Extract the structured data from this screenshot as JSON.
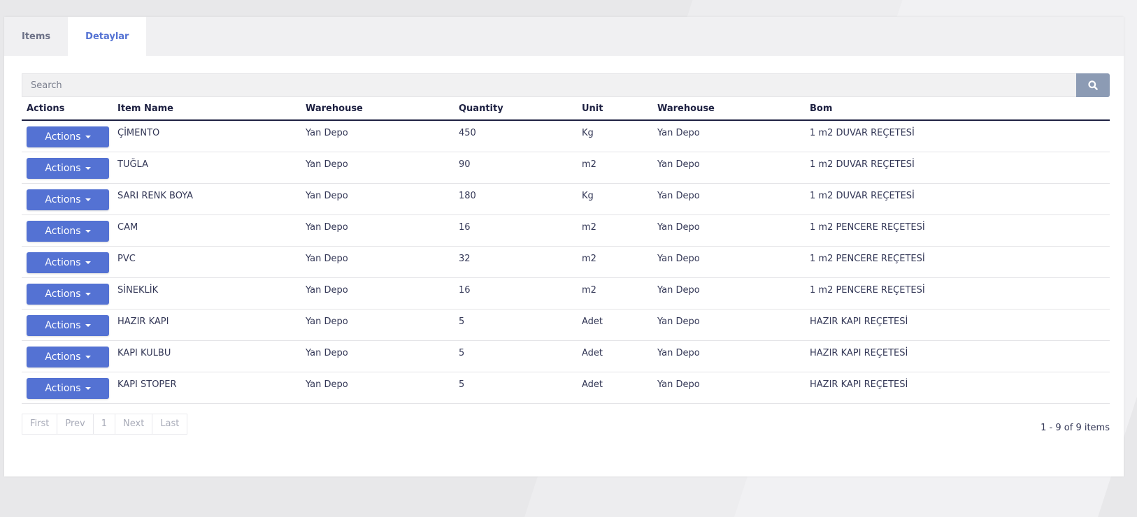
{
  "tabs": [
    {
      "label": "Items",
      "active": false
    },
    {
      "label": "Detaylar",
      "active": true
    }
  ],
  "search": {
    "placeholder": "Search",
    "icon": "search-icon"
  },
  "table": {
    "columns": [
      "Actions",
      "Item Name",
      "Warehouse",
      "Quantity",
      "Unit",
      "Warehouse",
      "Bom"
    ],
    "action_label": "Actions",
    "rows": [
      {
        "item_name": "ÇİMENTO",
        "warehouse": "Yan Depo",
        "quantity": "450",
        "unit": "Kg",
        "warehouse2": "Yan Depo",
        "bom": "1 m2 DUVAR REÇETESİ"
      },
      {
        "item_name": "TUĞLA",
        "warehouse": "Yan Depo",
        "quantity": "90",
        "unit": "m2",
        "warehouse2": "Yan Depo",
        "bom": "1 m2 DUVAR REÇETESİ"
      },
      {
        "item_name": "SARI RENK BOYA",
        "warehouse": "Yan Depo",
        "quantity": "180",
        "unit": "Kg",
        "warehouse2": "Yan Depo",
        "bom": "1 m2 DUVAR REÇETESİ"
      },
      {
        "item_name": "CAM",
        "warehouse": "Yan Depo",
        "quantity": "16",
        "unit": "m2",
        "warehouse2": "Yan Depo",
        "bom": "1 m2 PENCERE REÇETESİ"
      },
      {
        "item_name": "PVC",
        "warehouse": "Yan Depo",
        "quantity": "32",
        "unit": "m2",
        "warehouse2": "Yan Depo",
        "bom": "1 m2 PENCERE REÇETESİ"
      },
      {
        "item_name": "SİNEKLİK",
        "warehouse": "Yan Depo",
        "quantity": "16",
        "unit": "m2",
        "warehouse2": "Yan Depo",
        "bom": "1 m2 PENCERE REÇETESİ"
      },
      {
        "item_name": "HAZIR KAPI",
        "warehouse": "Yan Depo",
        "quantity": "5",
        "unit": "Adet",
        "warehouse2": "Yan Depo",
        "bom": "HAZIR KAPI REÇETESİ"
      },
      {
        "item_name": "KAPI KULBU",
        "warehouse": "Yan Depo",
        "quantity": "5",
        "unit": "Adet",
        "warehouse2": "Yan Depo",
        "bom": "HAZIR KAPI REÇETESİ"
      },
      {
        "item_name": "KAPI STOPER",
        "warehouse": "Yan Depo",
        "quantity": "5",
        "unit": "Adet",
        "warehouse2": "Yan Depo",
        "bom": "HAZIR KAPI REÇETESİ"
      }
    ]
  },
  "pagination": {
    "first": "First",
    "prev": "Prev",
    "page": "1",
    "next": "Next",
    "last": "Last"
  },
  "summary": "1 - 9 of 9 items",
  "colors": {
    "accent": "#5472d3",
    "search_button": "#8c9bb4",
    "header_text": "#1e2142"
  }
}
